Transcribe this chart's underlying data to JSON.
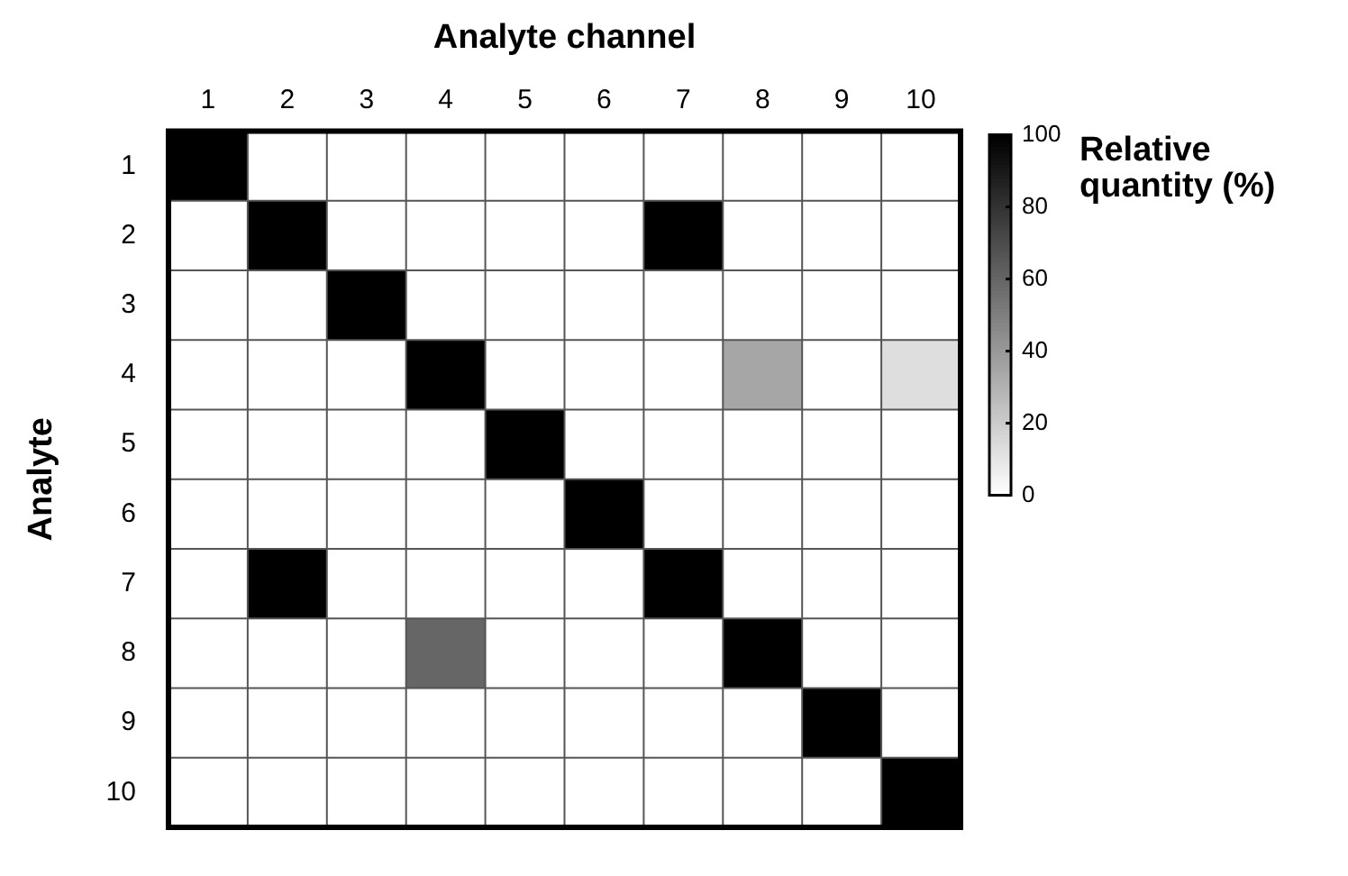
{
  "chart_data": {
    "type": "heatmap",
    "xlabel": "Analyte channel",
    "ylabel": "Analyte",
    "clabel": "Relative quantity (%)",
    "categories": [
      "1",
      "2",
      "3",
      "4",
      "5",
      "6",
      "7",
      "8",
      "9",
      "10"
    ],
    "y_categories": [
      "1",
      "2",
      "3",
      "4",
      "5",
      "6",
      "7",
      "8",
      "9",
      "10"
    ],
    "cells": [
      [
        100,
        0,
        0,
        0,
        0,
        0,
        0,
        0,
        0,
        0
      ],
      [
        0,
        100,
        0,
        0,
        0,
        0,
        100,
        0,
        0,
        0
      ],
      [
        0,
        0,
        100,
        0,
        0,
        0,
        0,
        0,
        0,
        0
      ],
      [
        0,
        0,
        0,
        100,
        0,
        0,
        0,
        35,
        0,
        13
      ],
      [
        0,
        0,
        0,
        0,
        100,
        0,
        0,
        0,
        0,
        0
      ],
      [
        0,
        0,
        0,
        0,
        0,
        100,
        0,
        0,
        0,
        0
      ],
      [
        0,
        100,
        0,
        0,
        0,
        0,
        100,
        0,
        0,
        0
      ],
      [
        0,
        0,
        0,
        60,
        0,
        0,
        0,
        100,
        0,
        0
      ],
      [
        0,
        0,
        0,
        0,
        0,
        0,
        0,
        0,
        100,
        0
      ],
      [
        0,
        0,
        0,
        0,
        0,
        0,
        0,
        0,
        0,
        100
      ]
    ],
    "clim": [
      0,
      100
    ],
    "cticks": [
      0,
      20,
      40,
      60,
      80,
      100
    ]
  }
}
